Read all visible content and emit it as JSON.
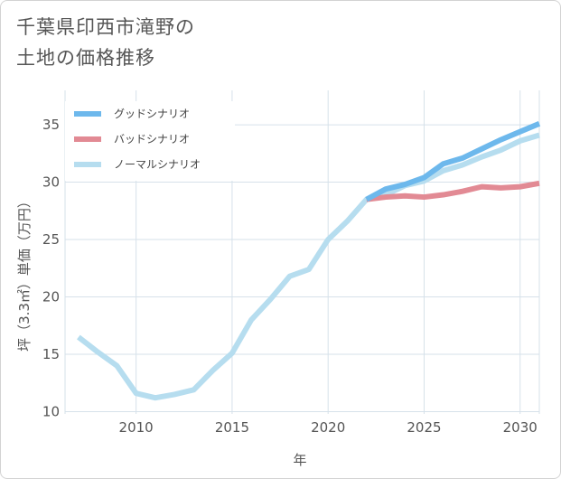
{
  "title_lines": [
    "千葉県印西市滝野の",
    "土地の価格推移"
  ],
  "chart_data": {
    "type": "line",
    "xlabel": "年",
    "ylabel": "坪（3.3㎡）単価（万円）",
    "xlim": [
      2006.3,
      2031
    ],
    "ylim": [
      9.8,
      38
    ],
    "x_ticks": [
      2010,
      2015,
      2020,
      2025,
      2030
    ],
    "y_ticks": [
      10,
      15,
      20,
      25,
      30,
      35
    ],
    "grid": true,
    "legend_position": "top-left",
    "series": [
      {
        "name": "グッドシナリオ",
        "color": "#6db8ec",
        "x": [
          2022,
          2023,
          2024,
          2025,
          2026,
          2027,
          2028,
          2029,
          2030,
          2031
        ],
        "y": [
          28.5,
          29.4,
          29.8,
          30.4,
          31.6,
          32.1,
          32.9,
          33.7,
          34.4,
          35.1
        ]
      },
      {
        "name": "バッドシナリオ",
        "color": "#e28a94",
        "x": [
          2022,
          2023,
          2024,
          2025,
          2026,
          2027,
          2028,
          2029,
          2030,
          2031
        ],
        "y": [
          28.5,
          28.7,
          28.8,
          28.7,
          28.9,
          29.2,
          29.6,
          29.5,
          29.6,
          29.9
        ]
      },
      {
        "name": "ノーマルシナリオ",
        "color": "#b6ddef",
        "x": [
          2007,
          2008,
          2009,
          2010,
          2011,
          2012,
          2013,
          2014,
          2015,
          2016,
          2017,
          2018,
          2019,
          2020,
          2021,
          2022,
          2023,
          2024,
          2025,
          2026,
          2027,
          2028,
          2029,
          2030,
          2031
        ],
        "y": [
          16.5,
          15.2,
          14.0,
          11.6,
          11.2,
          11.5,
          11.9,
          13.6,
          15.1,
          18.0,
          19.8,
          21.8,
          22.4,
          25.0,
          26.6,
          28.5,
          28.9,
          29.7,
          30.1,
          31.0,
          31.5,
          32.2,
          32.8,
          33.6,
          34.1
        ]
      }
    ]
  }
}
